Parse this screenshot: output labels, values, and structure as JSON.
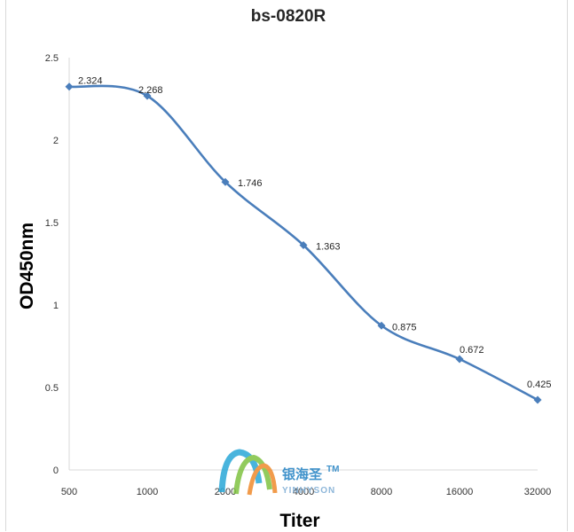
{
  "chart_data": {
    "type": "line",
    "title": "bs-0820R",
    "xlabel": "Titer",
    "ylabel": "OD450nm",
    "categories": [
      "500",
      "1000",
      "2000",
      "4000",
      "8000",
      "16000",
      "32000"
    ],
    "series": [
      {
        "values": [
          2.324,
          2.268,
          1.746,
          1.363,
          0.875,
          0.672,
          0.425
        ]
      }
    ],
    "data_labels": [
      "2.324",
      "2.268",
      "1.746",
      "1.363",
      "0.875",
      "0.672",
      "0.425"
    ],
    "y_ticks": [
      "0",
      "0.5",
      "1",
      "1.5",
      "2",
      "2.5"
    ],
    "ylim": [
      0,
      2.5
    ],
    "grid": false,
    "smooth": true,
    "line_color": "#4A7EBB",
    "marker": "diamond"
  },
  "watermark": {
    "brand_cn": "银海圣",
    "brand_en": "YINHYSON",
    "tm": "TM"
  }
}
